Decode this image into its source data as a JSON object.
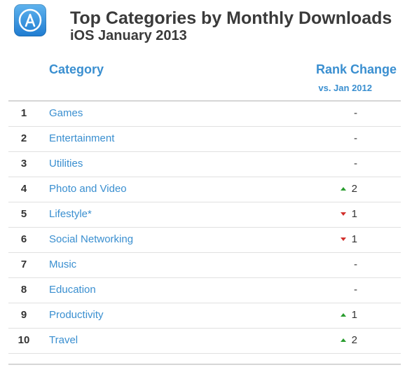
{
  "header": {
    "title": "Top Categories by Monthly Downloads",
    "subtitle": "iOS January 2013",
    "icon": "app-store-icon"
  },
  "columns": {
    "category": "Category",
    "rank_change": "Rank Change",
    "rank_change_sub": "vs. Jan 2012"
  },
  "colors": {
    "accent": "#3a8fd0",
    "up": "#2a9d2f",
    "down": "#d2302c"
  },
  "chart_data": {
    "type": "table",
    "title": "Top Categories by Monthly Downloads",
    "subtitle": "iOS January 2013",
    "columns": [
      "Category",
      "Rank Change"
    ],
    "rows": [
      {
        "rank": "1",
        "category": "Games",
        "direction": "none",
        "change": "-"
      },
      {
        "rank": "2",
        "category": "Entertainment",
        "direction": "none",
        "change": "-"
      },
      {
        "rank": "3",
        "category": "Utilities",
        "direction": "none",
        "change": "-"
      },
      {
        "rank": "4",
        "category": "Photo and Video",
        "direction": "up",
        "change": "2"
      },
      {
        "rank": "5",
        "category": "Lifestyle*",
        "direction": "down",
        "change": "1"
      },
      {
        "rank": "6",
        "category": "Social Networking",
        "direction": "down",
        "change": "1"
      },
      {
        "rank": "7",
        "category": "Music",
        "direction": "none",
        "change": "-"
      },
      {
        "rank": "8",
        "category": "Education",
        "direction": "none",
        "change": "-"
      },
      {
        "rank": "9",
        "category": "Productivity",
        "direction": "up",
        "change": "1"
      },
      {
        "rank": "10",
        "category": "Travel",
        "direction": "up",
        "change": "2"
      }
    ]
  }
}
